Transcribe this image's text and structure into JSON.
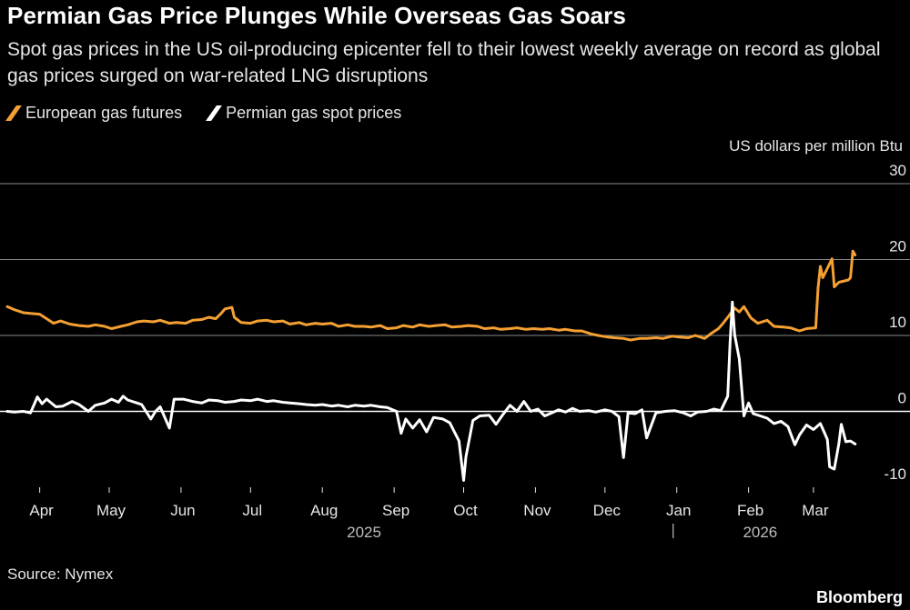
{
  "header": {
    "title": "Permian Gas Price Plunges While Overseas Gas Soars",
    "subtitle": "Spot gas prices in the US oil-producing epicenter fell to their lowest weekly average on record as global gas prices surged on war-related LNG disruptions"
  },
  "footer": {
    "source": "Source: Nymex",
    "brand": "Bloomberg"
  },
  "chart_data": {
    "type": "line",
    "title": "Permian Gas Price Plunges While Overseas Gas Soars",
    "subtitle": "Spot gas prices in the US oil-producing epicenter fell to their lowest weekly average on record as global gas prices surged on war-related LNG disruptions",
    "ylabel": "US dollars per million Btu",
    "ylim": [
      -10,
      30
    ],
    "yticks": [
      -10,
      0,
      10,
      20,
      30
    ],
    "xlim": [
      "2025-03-18",
      "2026-03-25"
    ],
    "x_ticks": [
      {
        "date": "2025-04-01",
        "label": "Apr"
      },
      {
        "date": "2025-05-01",
        "label": "May"
      },
      {
        "date": "2025-06-01",
        "label": "Jun"
      },
      {
        "date": "2025-07-01",
        "label": "Jul"
      },
      {
        "date": "2025-08-01",
        "label": "Aug"
      },
      {
        "date": "2025-09-01",
        "label": "Sep"
      },
      {
        "date": "2025-10-01",
        "label": "Oct"
      },
      {
        "date": "2025-11-01",
        "label": "Nov"
      },
      {
        "date": "2025-12-01",
        "label": "Dec"
      },
      {
        "date": "2026-01-01",
        "label": "Jan"
      },
      {
        "date": "2026-02-01",
        "label": "Feb"
      },
      {
        "date": "2026-03-01",
        "label": "Mar"
      }
    ],
    "year_labels": [
      {
        "date": "2025-08-19",
        "label": "2025"
      },
      {
        "date": "2026-02-06",
        "label": "2026"
      }
    ],
    "year_divider": "2026-01-01",
    "gridlines": true,
    "legend_position": "top-left",
    "series": [
      {
        "name": "European gas futures",
        "color": "#f5a033",
        "points": [
          [
            "2025-03-18",
            13.8
          ],
          [
            "2025-03-21",
            13.4
          ],
          [
            "2025-03-25",
            13.0
          ],
          [
            "2025-03-28",
            12.9
          ],
          [
            "2025-04-01",
            12.8
          ],
          [
            "2025-04-04",
            12.2
          ],
          [
            "2025-04-07",
            11.6
          ],
          [
            "2025-04-10",
            11.9
          ],
          [
            "2025-04-14",
            11.5
          ],
          [
            "2025-04-18",
            11.3
          ],
          [
            "2025-04-22",
            11.2
          ],
          [
            "2025-04-25",
            11.4
          ],
          [
            "2025-04-29",
            11.2
          ],
          [
            "2025-05-02",
            10.9
          ],
          [
            "2025-05-06",
            11.2
          ],
          [
            "2025-05-09",
            11.4
          ],
          [
            "2025-05-13",
            11.8
          ],
          [
            "2025-05-16",
            11.9
          ],
          [
            "2025-05-20",
            11.8
          ],
          [
            "2025-05-23",
            12.0
          ],
          [
            "2025-05-27",
            11.6
          ],
          [
            "2025-05-30",
            11.7
          ],
          [
            "2025-06-03",
            11.6
          ],
          [
            "2025-06-06",
            12.0
          ],
          [
            "2025-06-10",
            12.1
          ],
          [
            "2025-06-13",
            12.4
          ],
          [
            "2025-06-16",
            12.2
          ],
          [
            "2025-06-18",
            12.8
          ],
          [
            "2025-06-20",
            13.5
          ],
          [
            "2025-06-23",
            13.7
          ],
          [
            "2025-06-24",
            12.4
          ],
          [
            "2025-06-27",
            11.7
          ],
          [
            "2025-07-01",
            11.6
          ],
          [
            "2025-07-04",
            11.9
          ],
          [
            "2025-07-08",
            12.0
          ],
          [
            "2025-07-11",
            11.8
          ],
          [
            "2025-07-15",
            11.9
          ],
          [
            "2025-07-18",
            11.5
          ],
          [
            "2025-07-22",
            11.7
          ],
          [
            "2025-07-25",
            11.4
          ],
          [
            "2025-07-29",
            11.6
          ],
          [
            "2025-08-01",
            11.5
          ],
          [
            "2025-08-05",
            11.6
          ],
          [
            "2025-08-08",
            11.2
          ],
          [
            "2025-08-12",
            11.4
          ],
          [
            "2025-08-15",
            11.2
          ],
          [
            "2025-08-19",
            11.2
          ],
          [
            "2025-08-22",
            11.1
          ],
          [
            "2025-08-26",
            11.3
          ],
          [
            "2025-08-29",
            10.9
          ],
          [
            "2025-09-02",
            11.0
          ],
          [
            "2025-09-05",
            11.3
          ],
          [
            "2025-09-09",
            11.1
          ],
          [
            "2025-09-12",
            11.4
          ],
          [
            "2025-09-16",
            11.2
          ],
          [
            "2025-09-19",
            11.3
          ],
          [
            "2025-09-23",
            11.4
          ],
          [
            "2025-09-26",
            11.1
          ],
          [
            "2025-09-30",
            11.2
          ],
          [
            "2025-10-03",
            11.3
          ],
          [
            "2025-10-07",
            11.2
          ],
          [
            "2025-10-10",
            10.9
          ],
          [
            "2025-10-14",
            11.0
          ],
          [
            "2025-10-17",
            10.8
          ],
          [
            "2025-10-21",
            10.9
          ],
          [
            "2025-10-24",
            11.0
          ],
          [
            "2025-10-28",
            10.8
          ],
          [
            "2025-10-31",
            10.9
          ],
          [
            "2025-11-04",
            10.8
          ],
          [
            "2025-11-07",
            10.9
          ],
          [
            "2025-11-11",
            10.7
          ],
          [
            "2025-11-14",
            10.8
          ],
          [
            "2025-11-18",
            10.6
          ],
          [
            "2025-11-21",
            10.6
          ],
          [
            "2025-11-25",
            10.2
          ],
          [
            "2025-11-28",
            10.0
          ],
          [
            "2025-12-02",
            9.8
          ],
          [
            "2025-12-05",
            9.7
          ],
          [
            "2025-12-09",
            9.6
          ],
          [
            "2025-12-12",
            9.4
          ],
          [
            "2025-12-16",
            9.6
          ],
          [
            "2025-12-19",
            9.6
          ],
          [
            "2025-12-23",
            9.7
          ],
          [
            "2025-12-26",
            9.6
          ],
          [
            "2025-12-30",
            9.9
          ],
          [
            "2026-01-02",
            9.8
          ],
          [
            "2026-01-06",
            9.7
          ],
          [
            "2026-01-09",
            10.0
          ],
          [
            "2026-01-13",
            9.6
          ],
          [
            "2026-01-16",
            10.3
          ],
          [
            "2026-01-19",
            10.9
          ],
          [
            "2026-01-21",
            11.6
          ],
          [
            "2026-01-23",
            12.4
          ],
          [
            "2026-01-26",
            13.6
          ],
          [
            "2026-01-28",
            13.1
          ],
          [
            "2026-01-30",
            13.8
          ],
          [
            "2026-02-02",
            12.3
          ],
          [
            "2026-02-05",
            11.6
          ],
          [
            "2026-02-09",
            12.0
          ],
          [
            "2026-02-12",
            11.2
          ],
          [
            "2026-02-16",
            11.1
          ],
          [
            "2026-02-19",
            11.0
          ],
          [
            "2026-02-23",
            10.6
          ],
          [
            "2026-02-26",
            10.9
          ],
          [
            "2026-03-02",
            11.0
          ],
          [
            "2026-03-03",
            16.3
          ],
          [
            "2026-03-04",
            19.1
          ],
          [
            "2026-03-05",
            17.6
          ],
          [
            "2026-03-06",
            18.2
          ],
          [
            "2026-03-09",
            20.1
          ],
          [
            "2026-03-10",
            16.4
          ],
          [
            "2026-03-12",
            17.0
          ],
          [
            "2026-03-16",
            17.3
          ],
          [
            "2026-03-17",
            17.6
          ],
          [
            "2026-03-18",
            21.1
          ],
          [
            "2026-03-19",
            20.6
          ]
        ]
      },
      {
        "name": "Permian gas spot prices",
        "color": "#ffffff",
        "points": [
          [
            "2025-03-18",
            0.0
          ],
          [
            "2025-03-21",
            -0.1
          ],
          [
            "2025-03-25",
            0.0
          ],
          [
            "2025-03-28",
            -0.2
          ],
          [
            "2025-03-31",
            1.9
          ],
          [
            "2025-04-02",
            1.0
          ],
          [
            "2025-04-04",
            1.6
          ],
          [
            "2025-04-08",
            0.6
          ],
          [
            "2025-04-11",
            0.7
          ],
          [
            "2025-04-15",
            1.3
          ],
          [
            "2025-04-18",
            0.9
          ],
          [
            "2025-04-22",
            0.0
          ],
          [
            "2025-04-25",
            0.8
          ],
          [
            "2025-04-29",
            1.1
          ],
          [
            "2025-05-02",
            1.6
          ],
          [
            "2025-05-05",
            1.2
          ],
          [
            "2025-05-07",
            2.0
          ],
          [
            "2025-05-09",
            1.5
          ],
          [
            "2025-05-13",
            1.1
          ],
          [
            "2025-05-15",
            0.9
          ],
          [
            "2025-05-19",
            -1.0
          ],
          [
            "2025-05-21",
            0.0
          ],
          [
            "2025-05-23",
            0.6
          ],
          [
            "2025-05-27",
            -2.2
          ],
          [
            "2025-05-29",
            1.6
          ],
          [
            "2025-06-02",
            1.6
          ],
          [
            "2025-06-06",
            1.3
          ],
          [
            "2025-06-10",
            1.1
          ],
          [
            "2025-06-13",
            1.5
          ],
          [
            "2025-06-17",
            1.4
          ],
          [
            "2025-06-20",
            1.2
          ],
          [
            "2025-06-24",
            1.3
          ],
          [
            "2025-06-27",
            1.5
          ],
          [
            "2025-07-01",
            1.4
          ],
          [
            "2025-07-04",
            1.6
          ],
          [
            "2025-07-08",
            1.3
          ],
          [
            "2025-07-11",
            1.4
          ],
          [
            "2025-07-15",
            1.2
          ],
          [
            "2025-07-18",
            1.1
          ],
          [
            "2025-07-22",
            1.0
          ],
          [
            "2025-07-25",
            0.9
          ],
          [
            "2025-07-29",
            0.8
          ],
          [
            "2025-08-01",
            0.9
          ],
          [
            "2025-08-05",
            0.7
          ],
          [
            "2025-08-08",
            0.8
          ],
          [
            "2025-08-12",
            0.6
          ],
          [
            "2025-08-15",
            0.8
          ],
          [
            "2025-08-19",
            0.7
          ],
          [
            "2025-08-22",
            0.8
          ],
          [
            "2025-08-26",
            0.6
          ],
          [
            "2025-08-29",
            0.5
          ],
          [
            "2025-09-02",
            0.0
          ],
          [
            "2025-09-04",
            -2.9
          ],
          [
            "2025-09-06",
            -1.0
          ],
          [
            "2025-09-09",
            -2.2
          ],
          [
            "2025-09-12",
            -1.1
          ],
          [
            "2025-09-15",
            -2.7
          ],
          [
            "2025-09-18",
            -0.8
          ],
          [
            "2025-09-22",
            -1.0
          ],
          [
            "2025-09-25",
            -1.5
          ],
          [
            "2025-09-29",
            -3.9
          ],
          [
            "2025-10-01",
            -9.1
          ],
          [
            "2025-10-02",
            -6.0
          ],
          [
            "2025-10-05",
            -1.2
          ],
          [
            "2025-10-08",
            -0.6
          ],
          [
            "2025-10-12",
            -0.5
          ],
          [
            "2025-10-15",
            -1.7
          ],
          [
            "2025-10-18",
            -0.4
          ],
          [
            "2025-10-21",
            0.8
          ],
          [
            "2025-10-24",
            0.0
          ],
          [
            "2025-10-27",
            1.3
          ],
          [
            "2025-10-30",
            0.0
          ],
          [
            "2025-11-02",
            0.3
          ],
          [
            "2025-11-05",
            -0.6
          ],
          [
            "2025-11-08",
            -0.2
          ],
          [
            "2025-11-11",
            0.2
          ],
          [
            "2025-11-14",
            -0.1
          ],
          [
            "2025-11-17",
            0.4
          ],
          [
            "2025-11-20",
            0.0
          ],
          [
            "2025-11-24",
            0.1
          ],
          [
            "2025-11-27",
            -0.1
          ],
          [
            "2025-12-01",
            0.2
          ],
          [
            "2025-12-04",
            0.0
          ],
          [
            "2025-12-07",
            -0.7
          ],
          [
            "2025-12-09",
            -6.1
          ],
          [
            "2025-12-11",
            -0.2
          ],
          [
            "2025-12-14",
            -0.3
          ],
          [
            "2025-12-17",
            0.2
          ],
          [
            "2025-12-19",
            -3.5
          ],
          [
            "2025-12-23",
            -0.2
          ],
          [
            "2025-12-27",
            0.0
          ],
          [
            "2025-12-31",
            0.1
          ],
          [
            "2026-01-04",
            -0.2
          ],
          [
            "2026-01-07",
            -0.6
          ],
          [
            "2026-01-10",
            -0.1
          ],
          [
            "2026-01-14",
            0.0
          ],
          [
            "2026-01-17",
            0.3
          ],
          [
            "2026-01-20",
            0.1
          ],
          [
            "2026-01-23",
            2.0
          ],
          [
            "2026-01-24",
            9.1
          ],
          [
            "2026-01-25",
            14.4
          ],
          [
            "2026-01-26",
            10.1
          ],
          [
            "2026-01-28",
            6.9
          ],
          [
            "2026-01-30",
            -0.6
          ],
          [
            "2026-02-01",
            1.1
          ],
          [
            "2026-02-03",
            -0.3
          ],
          [
            "2026-02-06",
            -0.6
          ],
          [
            "2026-02-09",
            -0.9
          ],
          [
            "2026-02-12",
            -1.6
          ],
          [
            "2026-02-15",
            -1.3
          ],
          [
            "2026-02-18",
            -2.0
          ],
          [
            "2026-02-21",
            -4.4
          ],
          [
            "2026-02-23",
            -3.1
          ],
          [
            "2026-02-26",
            -1.8
          ],
          [
            "2026-03-01",
            -2.4
          ],
          [
            "2026-03-04",
            -1.6
          ],
          [
            "2026-03-07",
            -3.7
          ],
          [
            "2026-03-08",
            -7.3
          ],
          [
            "2026-03-10",
            -7.6
          ],
          [
            "2026-03-12",
            -4.2
          ],
          [
            "2026-03-13",
            -1.7
          ],
          [
            "2026-03-15",
            -4.0
          ],
          [
            "2026-03-17",
            -3.9
          ],
          [
            "2026-03-19",
            -4.3
          ]
        ]
      }
    ]
  }
}
